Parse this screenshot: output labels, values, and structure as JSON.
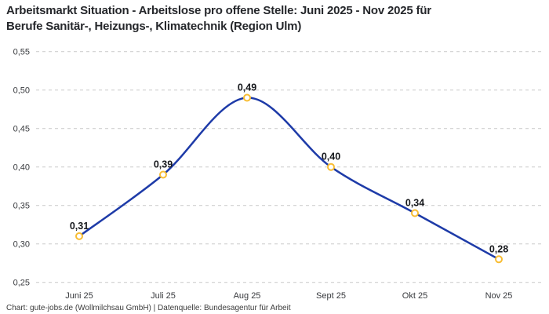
{
  "header": {
    "title_line1": "Arbeitsmarkt Situation - Arbeitslose pro offene Stelle: Juni 2025 - Nov 2025 für",
    "title_line2": "Berufe Sanitär-, Heizungs-, Klimatechnik (Region Ulm)"
  },
  "footer": {
    "credit": "Chart: gute-jobs.de (Wollmilchsau GmbH) | Datenquelle: Bundesagentur für Arbeit"
  },
  "chart_data": {
    "type": "line",
    "title": "Arbeitsmarkt Situation - Arbeitslose pro offene Stelle: Juni 2025 - Nov 2025 für Berufe Sanitär-, Heizungs-, Klimatechnik (Region Ulm)",
    "categories": [
      "Juni 25",
      "Juli 25",
      "Aug 25",
      "Sept 25",
      "Okt 25",
      "Nov 25"
    ],
    "values": [
      0.31,
      0.39,
      0.49,
      0.4,
      0.34,
      0.28
    ],
    "value_labels": [
      "0,31",
      "0,39",
      "0,49",
      "0,40",
      "0,34",
      "0,28"
    ],
    "xlabel": "",
    "ylabel": "",
    "ylim": [
      0.25,
      0.55
    ],
    "yticks": [
      0.55,
      0.5,
      0.45,
      0.4,
      0.35,
      0.3,
      0.25
    ],
    "ytick_labels": [
      "0,55",
      "0,50",
      "0,45",
      "0,40",
      "0,35",
      "0,30",
      "0,25"
    ],
    "grid": "horizontal-dashed",
    "legend": "none",
    "line_shape": "smooth",
    "colors": {
      "line": "#1e3ba8",
      "marker_ring": "#f8bd33",
      "marker_fill": "#ffffff",
      "grid": "#c9c9c9",
      "point_label": "#16181c",
      "axis_text": "#37393d"
    }
  }
}
